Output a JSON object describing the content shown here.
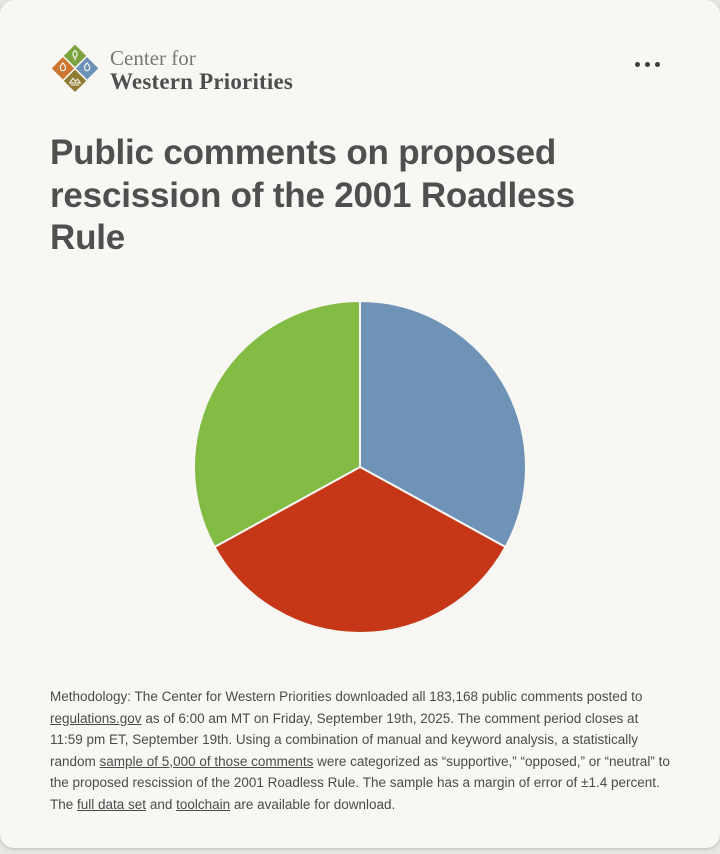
{
  "header": {
    "logo": {
      "line1": "Center for",
      "line2": "Western Priorities",
      "mark_colors": {
        "top_green": "#7ba33f",
        "left_orange": "#cd7630",
        "right_blue": "#6c92ba",
        "bottom_brown": "#8f7c33"
      }
    },
    "menu_icon": "ellipsis-horizontal"
  },
  "title": {
    "text": "Public comments on proposed rescission of the 2001 Roadless Rule"
  },
  "chart_data": {
    "type": "pie",
    "title": "Public comments on proposed rescission of the 2001 Roadless Rule",
    "labels_visible": false,
    "start_angle_deg": 0,
    "direction": "clockwise",
    "separator_color": "#f8f7f4",
    "segments": [
      {
        "name": "blue",
        "color": "#6e93b7",
        "percent": 33
      },
      {
        "name": "red",
        "color": "#c53717",
        "percent": 34
      },
      {
        "name": "green",
        "color": "#82bc45",
        "percent": 33
      }
    ]
  },
  "methodology": {
    "parts": [
      {
        "text": "Methodology: The Center for Western Priorities downloaded all 183,168 public comments posted to ",
        "link": false
      },
      {
        "text": "regulations.gov",
        "link": true
      },
      {
        "text": " as of 6:00 am MT on Friday, September 19th, 2025. The comment period closes at 11:59 pm ET, September 19th. Using a combination of manual and keyword analysis, a statistically random ",
        "link": false
      },
      {
        "text": "sample of 5,000 of those comments",
        "link": true
      },
      {
        "text": " were categorized as “supportive,” “opposed,”  or “neutral” to the proposed rescission of the 2001 Roadless Rule. The sample has a margin of error of ±1.4 percent. The ",
        "link": false
      },
      {
        "text": "full data set",
        "link": true
      },
      {
        "text": " and ",
        "link": false
      },
      {
        "text": "toolchain",
        "link": true
      },
      {
        "text": " are available for download.",
        "link": false
      }
    ]
  },
  "colors": {
    "card_background": "#f8f7f4",
    "page_background": "#e8e6e3",
    "title_text": "#4f4f4f",
    "body_text": "#4b4b4b",
    "menu_dots": "#3e3e3e"
  }
}
